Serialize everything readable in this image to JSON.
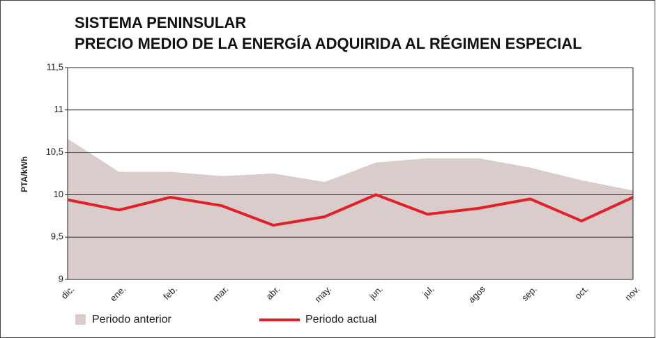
{
  "chart_data": {
    "type": "area-line",
    "title": [
      "SISTEMA PENINSULAR",
      "PRECIO MEDIO DE LA ENERGÍA ADQUIRIDA AL RÉGIMEN ESPECIAL"
    ],
    "y_label": "PTA/kWh",
    "categories": [
      "dic.",
      "ene.",
      "feb.",
      "mar.",
      "abr.",
      "may.",
      "jun.",
      "jul.",
      "agos",
      "sep.",
      "oct.",
      "nov."
    ],
    "series": [
      {
        "name": "Periodo anterior",
        "color": "#d9cccb",
        "kind": "area",
        "values": [
          10.66,
          10.27,
          10.27,
          10.22,
          10.25,
          10.15,
          10.38,
          10.43,
          10.43,
          10.32,
          10.17,
          10.05
        ]
      },
      {
        "name": "Periodo actual",
        "color": "#e3202a",
        "kind": "line",
        "values": [
          9.94,
          9.82,
          9.97,
          9.87,
          9.64,
          9.74,
          10.0,
          9.77,
          9.84,
          9.95,
          9.69,
          9.97
        ]
      }
    ],
    "ylim": [
      9,
      11.5
    ],
    "yticks": [
      9,
      {
        "value": 9.5,
        "label": "9,5"
      },
      10,
      {
        "value": 10.5,
        "label": "10,5"
      },
      11,
      {
        "value": 11.5,
        "label": "11,5"
      }
    ],
    "grid": true
  }
}
